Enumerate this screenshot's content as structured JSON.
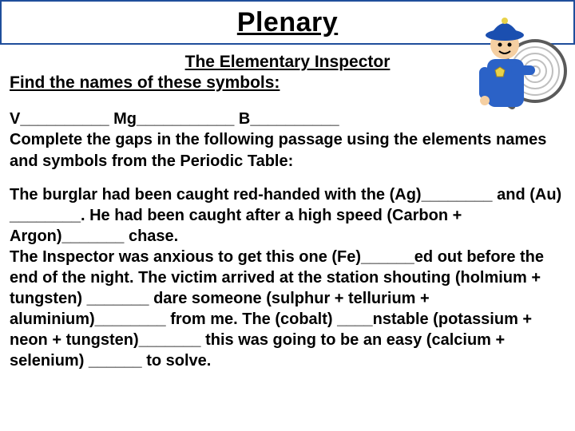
{
  "title": "Plenary",
  "subtitle": "The Elementary Inspector",
  "instruction": "Find the names of these symbols:",
  "symbols_line": "V__________   Mg___________   B__________",
  "instruction2": "Complete the gaps in the following passage using the elements names and symbols from the Periodic Table:",
  "story": "The burglar had been caught red-handed with the (Ag)________ and (Au) ________. He had been caught after a high speed (Carbon + Argon)_______ chase.\nThe Inspector was anxious to get this one (Fe)______ed out before the end of the night. The victim arrived at the station shouting (holmium + tungsten) _______ dare someone (sulphur + tellurium + aluminium)________ from me. The (cobalt) ____nstable (potassium + neon + tungsten)_______ this was going to be an easy (calcium + selenium) ______ to solve.",
  "colors": {
    "frame_border": "#1f4e9b",
    "text": "#000000",
    "background": "#ffffff"
  },
  "title_fontsize": 34,
  "body_fontsize": 20,
  "inspector_colors": {
    "hat": "#1b4fb0",
    "face": "#f5cfa2",
    "uniform": "#2b62c7",
    "glass_rim": "#5a5a5a",
    "badge": "#e8d24a"
  }
}
